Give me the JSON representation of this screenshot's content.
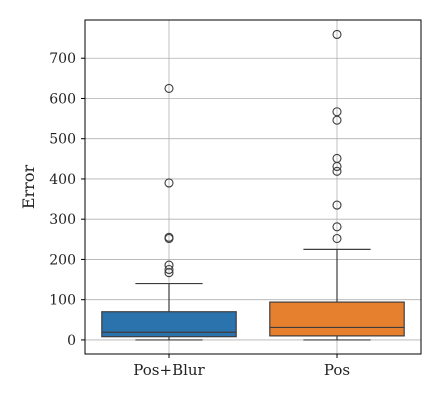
{
  "chart_data": {
    "type": "box",
    "title": "",
    "xlabel": "",
    "ylabel": "Error",
    "ylim": [
      -35,
      795
    ],
    "yticks": [
      0,
      100,
      200,
      300,
      400,
      500,
      600,
      700
    ],
    "grid": true,
    "legend": "none",
    "categories": [
      "Pos+Blur",
      "Pos"
    ],
    "boxes": [
      {
        "category": "Pos+Blur",
        "color": "#2b73ad",
        "whisker_low": 0,
        "q1": 8,
        "median": 19,
        "q3": 70,
        "whisker_high": 140,
        "outliers": [
          167,
          175,
          186,
          252,
          255,
          390,
          625
        ]
      },
      {
        "category": "Pos",
        "color": "#e6802f",
        "whisker_low": 0,
        "q1": 10,
        "median": 31,
        "q3": 94,
        "whisker_high": 225,
        "outliers": [
          252,
          281,
          335,
          419,
          431,
          451,
          546,
          567,
          759
        ]
      }
    ]
  }
}
